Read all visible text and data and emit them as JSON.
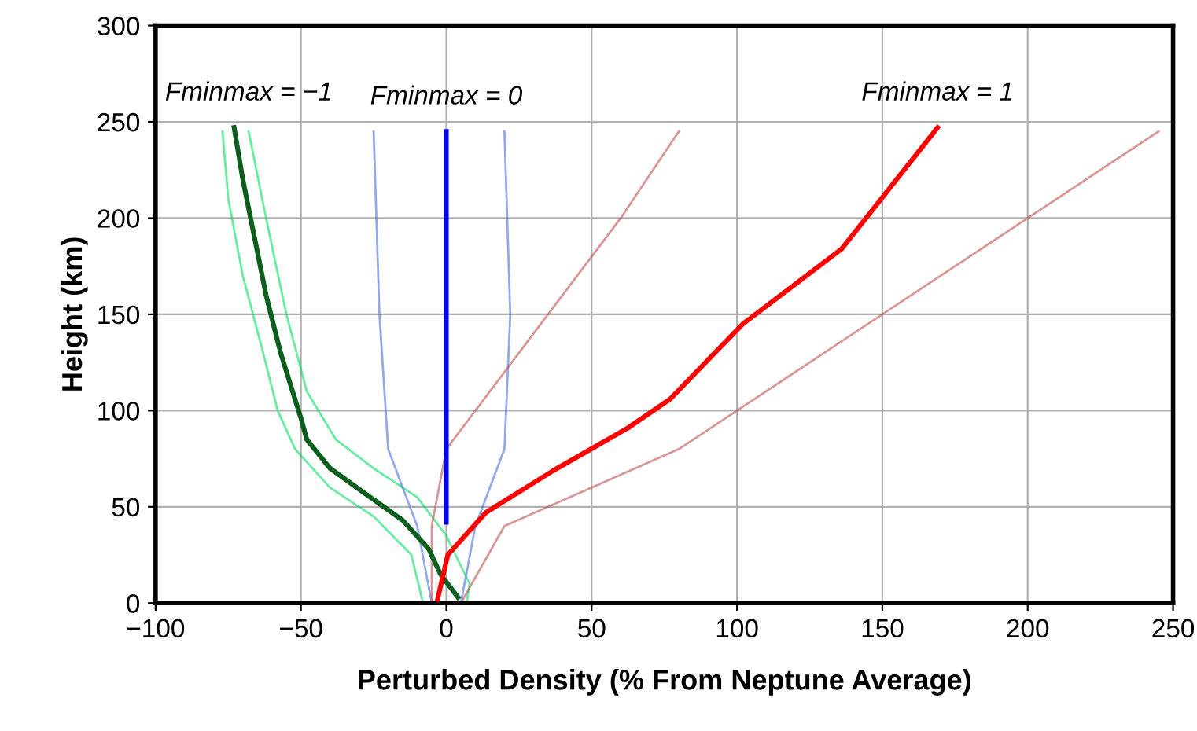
{
  "chart_data": {
    "type": "line",
    "xlabel": "Perturbed Density (% From Neptune Average)",
    "ylabel": "Height (km)",
    "xlim": [
      -100,
      250
    ],
    "ylim": [
      0,
      300
    ],
    "xticks": [
      {
        "value": -100,
        "label": "−100"
      },
      {
        "value": -50,
        "label": "−50"
      },
      0,
      50,
      100,
      150,
      200,
      250
    ],
    "yticks": [
      0,
      50,
      100,
      150,
      200,
      250,
      300
    ],
    "grid": true,
    "legend": false,
    "marker": "none",
    "line_style": "solid",
    "annotations": [
      "Fminmax = −1",
      "Fminmax = 0",
      "Fminmax = 1"
    ],
    "series": [
      {
        "color": "#00e060",
        "x": [
          -77,
          -75,
          -70,
          -63,
          -58,
          -52,
          -40,
          -25,
          -12,
          -8
        ],
        "values": [
          245,
          210,
          170,
          130,
          100,
          80,
          60,
          45,
          25,
          0
        ]
      },
      {
        "color": "#00e060",
        "x": [
          -68,
          -62,
          -55,
          -48,
          -38,
          -25,
          -10,
          0,
          8,
          7
        ],
        "values": [
          245,
          200,
          150,
          110,
          85,
          70,
          55,
          35,
          10,
          0
        ]
      },
      {
        "color": "#4a6fe0",
        "x": [
          -25,
          -23,
          -20,
          -10,
          -5
        ],
        "values": [
          245,
          150,
          80,
          40,
          0
        ]
      },
      {
        "color": "#4a6fe0",
        "x": [
          20,
          22,
          20,
          10,
          5
        ],
        "values": [
          245,
          150,
          80,
          40,
          0
        ]
      },
      {
        "color": "#c05050",
        "x": [
          80,
          60,
          45,
          30,
          15,
          0,
          -5,
          -5
        ],
        "values": [
          245,
          200,
          170,
          140,
          110,
          80,
          40,
          0
        ]
      },
      {
        "color": "#c05050",
        "x": [
          245,
          200,
          170,
          140,
          110,
          80,
          50,
          20,
          5
        ],
        "values": [
          245,
          200,
          170,
          140,
          110,
          80,
          60,
          40,
          0
        ]
      },
      {
        "color": "#0b5e1c",
        "x": [
          -73,
          -70,
          -66,
          -62,
          -57,
          -50,
          -48,
          -40,
          -28,
          -15,
          -6,
          -2,
          4
        ],
        "values": [
          247,
          220,
          190,
          160,
          130,
          96,
          85,
          70,
          57,
          43,
          28,
          15,
          3
        ]
      },
      {
        "color": "#0000ee",
        "x": [
          0,
          0
        ],
        "values": [
          42,
          245
        ]
      },
      {
        "color": "#ff0000",
        "x": [
          169,
          136,
          102,
          77,
          62.5,
          37,
          13.6,
          0.5,
          -3
        ],
        "values": [
          247,
          184,
          145,
          106,
          91,
          69,
          47,
          25,
          2
        ]
      }
    ]
  }
}
